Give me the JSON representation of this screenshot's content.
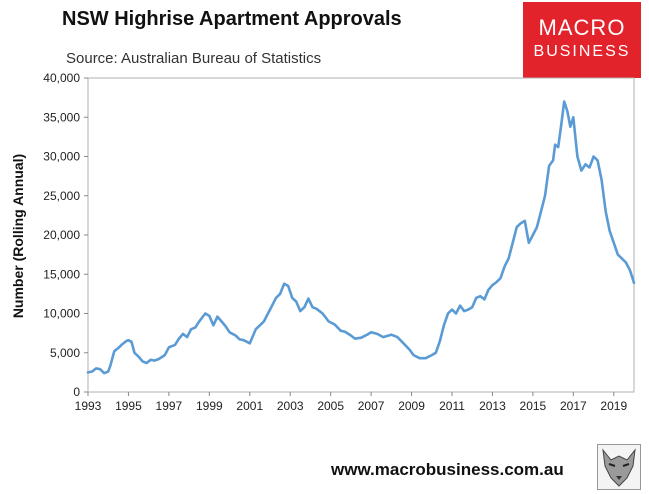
{
  "header": {
    "title": "NSW Highrise Apartment Approvals",
    "subtitle": "Source: Australian Bureau of Statistics"
  },
  "logo": {
    "line1": "MACRO",
    "line2": "BUSINESS",
    "color": "#e3232b"
  },
  "footer": {
    "url": "www.macrobusiness.com.au",
    "icon": "wolf-icon"
  },
  "chart_data": {
    "type": "line",
    "title": "NSW Highrise Apartment Approvals",
    "xlabel": "",
    "ylabel": "Number (Rolling Annual)",
    "xlim": [
      1993,
      2020
    ],
    "ylim": [
      0,
      40000
    ],
    "grid": false,
    "line_color": "#5b9bd5",
    "x_ticks": [
      "1993",
      "1995",
      "1997",
      "1999",
      "2001",
      "2003",
      "2005",
      "2007",
      "2009",
      "2011",
      "2013",
      "2015",
      "2017",
      "2019"
    ],
    "y_ticks": [
      "0",
      "5,000",
      "10,000",
      "15,000",
      "20,000",
      "25,000",
      "30,000",
      "35,000",
      "40,000"
    ],
    "series": [
      {
        "x": [
          1993.0,
          1993.2,
          1993.4,
          1993.6,
          1993.8,
          1994.0,
          1994.1,
          1994.3,
          1994.5,
          1994.7,
          1994.9,
          1995.0,
          1995.15,
          1995.3,
          1995.5,
          1995.7,
          1995.9,
          1996.1,
          1996.3,
          1996.5,
          1996.8,
          1997.0,
          1997.3,
          1997.5,
          1997.7,
          1997.9,
          1998.1,
          1998.3,
          1998.5,
          1998.8,
          1999.0,
          1999.2,
          1999.4,
          1999.6,
          1999.8,
          2000.0,
          2000.3,
          2000.5,
          2000.7,
          2001.0,
          2001.3,
          2001.5,
          2001.7,
          2002.0,
          2002.3,
          2002.5,
          2002.7,
          2002.9,
          2003.1,
          2003.3,
          2003.5,
          2003.7,
          2003.9,
          2004.1,
          2004.3,
          2004.6,
          2004.9,
          2005.2,
          2005.5,
          2005.7,
          2006.0,
          2006.2,
          2006.5,
          2006.8,
          2007.0,
          2007.3,
          2007.6,
          2008.0,
          2008.3,
          2008.6,
          2008.9,
          2009.1,
          2009.4,
          2009.7,
          2010.0,
          2010.2,
          2010.4,
          2010.6,
          2010.8,
          2011.0,
          2011.2,
          2011.4,
          2011.6,
          2011.8,
          2012.0,
          2012.2,
          2012.4,
          2012.6,
          2012.8,
          2013.0,
          2013.2,
          2013.4,
          2013.6,
          2013.8,
          2014.0,
          2014.2,
          2014.4,
          2014.6,
          2014.8,
          2015.0,
          2015.2,
          2015.4,
          2015.6,
          2015.8,
          2016.0,
          2016.1,
          2016.25,
          2016.4,
          2016.55,
          2016.7,
          2016.85,
          2017.0,
          2017.2,
          2017.4,
          2017.6,
          2017.8,
          2018.0,
          2018.2,
          2018.4,
          2018.6,
          2018.8,
          2019.0,
          2019.2,
          2019.4,
          2019.6,
          2019.8,
          2020.0
        ],
        "y": [
          2500,
          2600,
          3000,
          2900,
          2400,
          2600,
          3300,
          5200,
          5600,
          6100,
          6500,
          6600,
          6400,
          5000,
          4500,
          3900,
          3700,
          4100,
          4000,
          4200,
          4700,
          5700,
          6000,
          6800,
          7400,
          7000,
          8000,
          8200,
          9000,
          10000,
          9700,
          8500,
          9600,
          9000,
          8400,
          7600,
          7200,
          6700,
          6600,
          6200,
          8000,
          8500,
          9000,
          10500,
          12000,
          12500,
          13800,
          13500,
          12000,
          11500,
          10300,
          10800,
          11900,
          10800,
          10600,
          10000,
          9000,
          8600,
          7800,
          7700,
          7200,
          6800,
          6900,
          7300,
          7600,
          7400,
          7000,
          7300,
          7000,
          6200,
          5400,
          4700,
          4300,
          4300,
          4700,
          5000,
          6500,
          8500,
          10000,
          10500,
          10000,
          11000,
          10300,
          10500,
          10800,
          12000,
          12200,
          11800,
          13000,
          13600,
          14000,
          14500,
          16000,
          17000,
          19000,
          21000,
          21500,
          21800,
          19000,
          20000,
          21000,
          23000,
          25000,
          28800,
          29500,
          31500,
          31200,
          34000,
          37000,
          35800,
          33800,
          35000,
          30000,
          28200,
          29000,
          28600,
          30000,
          29500,
          27000,
          23000,
          20500,
          19000,
          17500,
          17000,
          16500,
          15500,
          13900
        ]
      }
    ]
  }
}
